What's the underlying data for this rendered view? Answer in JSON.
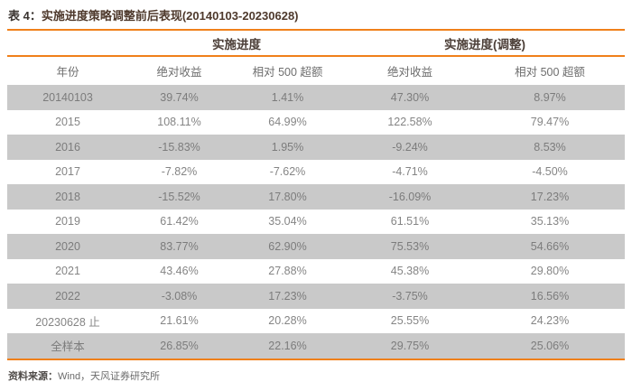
{
  "title": {
    "prefix": "表 4：",
    "caption": "实施进度策略调整前后表现(20140103-20230628)"
  },
  "chart_data": {
    "type": "table",
    "title": "表 4：实施进度策略调整前后表现(20140103-20230628)",
    "group_headers": [
      "实施进度",
      "实施进度(调整)"
    ],
    "columns": [
      "年份",
      "绝对收益",
      "相对 500 超额",
      "绝对收益",
      "相对 500 超额"
    ],
    "rows": [
      {
        "year": "20140103",
        "values": [
          "39.74%",
          "1.41%",
          "47.30%",
          "8.97%"
        ]
      },
      {
        "year": "2015",
        "values": [
          "108.11%",
          "64.99%",
          "122.58%",
          "79.47%"
        ]
      },
      {
        "year": "2016",
        "values": [
          "-15.83%",
          "1.95%",
          "-9.24%",
          "8.53%"
        ]
      },
      {
        "year": "2017",
        "values": [
          "-7.82%",
          "-7.62%",
          "-4.71%",
          "-4.50%"
        ]
      },
      {
        "year": "2018",
        "values": [
          "-15.52%",
          "17.80%",
          "-16.09%",
          "17.23%"
        ]
      },
      {
        "year": "2019",
        "values": [
          "61.42%",
          "35.04%",
          "61.51%",
          "35.13%"
        ]
      },
      {
        "year": "2020",
        "values": [
          "83.77%",
          "62.90%",
          "75.53%",
          "54.66%"
        ]
      },
      {
        "year": "2021",
        "values": [
          "43.46%",
          "27.88%",
          "45.38%",
          "29.80%"
        ]
      },
      {
        "year": "2022",
        "values": [
          "-3.08%",
          "17.23%",
          "-3.75%",
          "16.56%"
        ]
      },
      {
        "year": "20230628 止",
        "values": [
          "21.61%",
          "20.28%",
          "25.55%",
          "24.23%"
        ]
      },
      {
        "year": "全样本",
        "values": [
          "26.85%",
          "22.16%",
          "29.75%",
          "25.06%"
        ]
      }
    ]
  },
  "footer": {
    "label": "资料来源：",
    "text": "Wind，天风证券研究所"
  },
  "colors": {
    "accent_orange": "#f0801a",
    "band_gray": "#c9c9c9",
    "data_text": "#858585",
    "header_text": "#4c3f38"
  }
}
